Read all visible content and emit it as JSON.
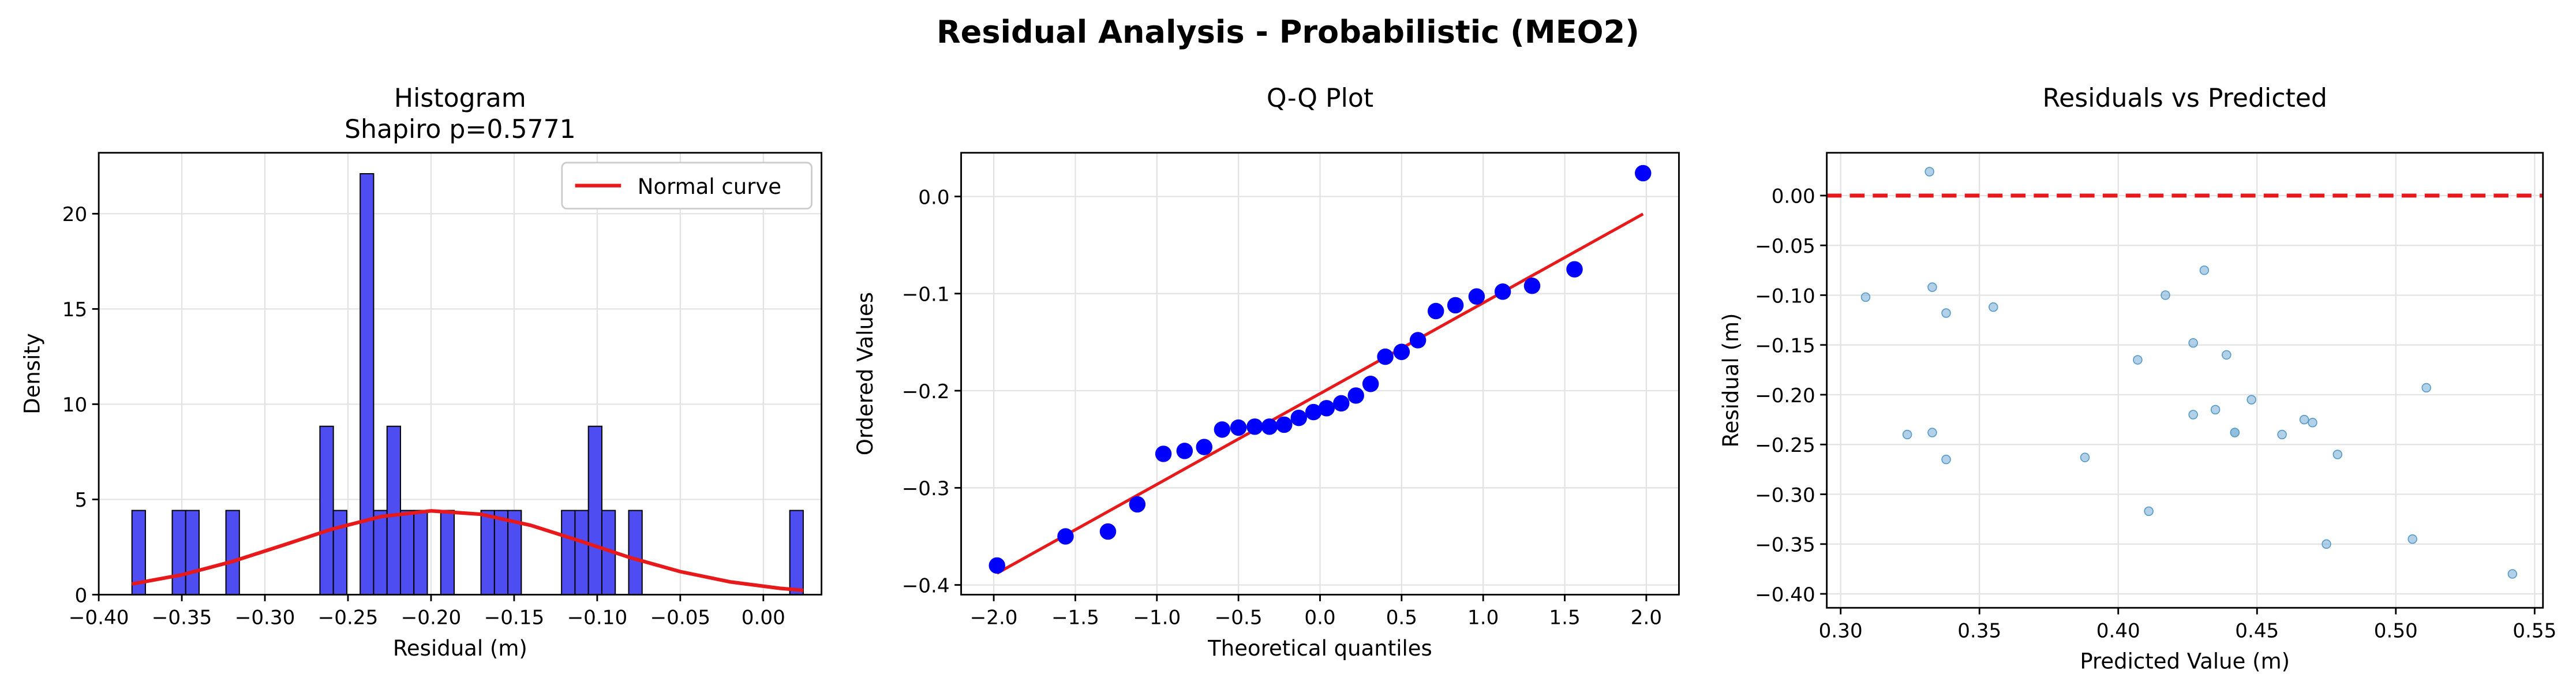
{
  "title": "Residual Analysis - Probabilistic (MEO2)",
  "chart_data": [
    {
      "type": "histogram",
      "title": "Histogram",
      "subtitle": "Shapiro p=0.5771",
      "xlabel": "Residual (m)",
      "ylabel": "Density",
      "bins": [
        -0.38,
        -0.37192,
        -0.36384,
        -0.35576,
        -0.34768,
        -0.3396,
        -0.33152,
        -0.32344,
        -0.31536,
        -0.30728,
        -0.2992,
        -0.29112,
        -0.28304,
        -0.27496,
        -0.26688,
        -0.2588,
        -0.25072,
        -0.24264,
        -0.23456,
        -0.22648,
        -0.2184,
        -0.21032,
        -0.20224,
        -0.19416,
        -0.18608,
        -0.178,
        -0.16992,
        -0.16184,
        -0.15376,
        -0.14568,
        -0.1376,
        -0.12952,
        -0.12144,
        -0.11336,
        -0.10528,
        -0.0972,
        -0.08912,
        -0.08104,
        -0.07296,
        -0.06488,
        -0.0568,
        -0.04872,
        -0.04064,
        -0.03256,
        -0.02448,
        -0.0164,
        -0.00832,
        -0.00024,
        0.00784,
        0.01592,
        0.024
      ],
      "values": [
        4.42,
        0,
        0,
        4.42,
        4.42,
        0,
        0,
        4.42,
        0,
        0,
        0,
        0,
        0,
        0,
        8.84,
        4.42,
        0,
        22.1,
        4.42,
        8.84,
        4.42,
        4.42,
        0,
        4.42,
        0,
        0,
        4.42,
        4.42,
        4.42,
        0,
        0,
        0,
        4.42,
        4.42,
        8.84,
        4.42,
        0,
        4.42,
        0,
        0,
        0,
        0,
        0,
        0,
        0,
        0,
        0,
        0,
        0,
        4.42
      ],
      "color": "#4d4df2",
      "curve": {
        "name": "Normal curve",
        "color": "#e8191b",
        "x": [
          -0.38,
          -0.35,
          -0.32,
          -0.29,
          -0.26,
          -0.23,
          -0.2,
          -0.17,
          -0.14,
          -0.11,
          -0.08,
          -0.05,
          -0.02,
          0.01,
          0.024
        ],
        "values": [
          0.56,
          1.04,
          1.73,
          2.57,
          3.43,
          4.1,
          4.4,
          4.22,
          3.64,
          2.81,
          1.94,
          1.21,
          0.67,
          0.33,
          0.23
        ]
      },
      "legend": "upper right",
      "grid": true,
      "xlim": [
        -0.4,
        0.035
      ],
      "ylim": [
        0,
        23.2
      ],
      "xticks": [
        {
          "value": -0.4,
          "label": "−0.40"
        },
        {
          "value": -0.35,
          "label": "−0.35"
        },
        {
          "value": -0.3,
          "label": "−0.30"
        },
        {
          "value": -0.25,
          "label": "−0.25"
        },
        {
          "value": -0.2,
          "label": "−0.20"
        },
        {
          "value": -0.15,
          "label": "−0.15"
        },
        {
          "value": -0.1,
          "label": "−0.10"
        },
        {
          "value": -0.05,
          "label": "−0.05"
        },
        {
          "value": 0,
          "label": "0.00"
        }
      ],
      "yticks": [
        0,
        5,
        10,
        15,
        20
      ]
    },
    {
      "type": "qq",
      "title": "Q-Q Plot",
      "xlabel": "Theoretical quantiles",
      "ylabel": "Ordered Values",
      "x": [
        -1.98,
        -1.56,
        -1.3,
        -1.12,
        -0.96,
        -0.83,
        -0.71,
        -0.6,
        -0.5,
        -0.4,
        -0.31,
        -0.22,
        -0.13,
        -0.04,
        0.04,
        0.13,
        0.22,
        0.31,
        0.4,
        0.5,
        0.6,
        0.71,
        0.83,
        0.96,
        1.12,
        1.3,
        1.56,
        1.98
      ],
      "values": [
        -0.38,
        -0.35,
        -0.345,
        -0.317,
        -0.265,
        -0.262,
        -0.258,
        -0.24,
        -0.238,
        -0.237,
        -0.237,
        -0.235,
        -0.228,
        -0.222,
        -0.218,
        -0.213,
        -0.205,
        -0.193,
        -0.165,
        -0.16,
        -0.148,
        -0.118,
        -0.112,
        -0.103,
        -0.098,
        -0.092,
        -0.075,
        0.024
      ],
      "color": "#0000ff",
      "fit": {
        "x": [
          -1.98,
          1.98
        ],
        "values": [
          -0.388,
          -0.018
        ],
        "color": "#e8191b"
      },
      "grid": true,
      "xlim": [
        -2.2,
        2.2
      ],
      "ylim": [
        -0.41,
        0.045
      ],
      "xticks": [
        {
          "value": -2,
          "label": "−2.0"
        },
        {
          "value": -1.5,
          "label": "−1.5"
        },
        {
          "value": -1,
          "label": "−1.0"
        },
        {
          "value": -0.5,
          "label": "−0.5"
        },
        {
          "value": 0,
          "label": "0.0"
        },
        {
          "value": 0.5,
          "label": "0.5"
        },
        {
          "value": 1,
          "label": "1.0"
        },
        {
          "value": 1.5,
          "label": "1.5"
        },
        {
          "value": 2,
          "label": "2.0"
        }
      ],
      "yticks": [
        {
          "value": -0.4,
          "label": "−0.4"
        },
        {
          "value": -0.3,
          "label": "−0.3"
        },
        {
          "value": -0.2,
          "label": "−0.2"
        },
        {
          "value": -0.1,
          "label": "−0.1"
        },
        {
          "value": 0,
          "label": "0.0"
        }
      ]
    },
    {
      "type": "scatter",
      "title": "Residuals vs Predicted",
      "xlabel": "Predicted Value (m)",
      "ylabel": "Residual (m)",
      "x": [
        0.309,
        0.332,
        0.333,
        0.338,
        0.355,
        0.324,
        0.333,
        0.338,
        0.388,
        0.407,
        0.411,
        0.417,
        0.427,
        0.431,
        0.427,
        0.435,
        0.439,
        0.442,
        0.442,
        0.448,
        0.459,
        0.467,
        0.47,
        0.475,
        0.479,
        0.506,
        0.511,
        0.542
      ],
      "values": [
        -0.102,
        0.024,
        -0.092,
        -0.118,
        -0.112,
        -0.24,
        -0.238,
        -0.265,
        -0.263,
        -0.165,
        -0.317,
        -0.1,
        -0.148,
        -0.075,
        -0.22,
        -0.215,
        -0.16,
        -0.238,
        -0.238,
        -0.205,
        -0.24,
        -0.225,
        -0.228,
        -0.35,
        -0.26,
        -0.345,
        -0.193,
        -0.38
      ],
      "color": "#7fb2d8",
      "axhline": 0,
      "axhline_color": "#e8191b",
      "grid": true,
      "xlim": [
        0.295,
        0.553
      ],
      "ylim": [
        -0.414,
        0.043
      ],
      "xticks": [
        {
          "value": 0.3,
          "label": "0.30"
        },
        {
          "value": 0.35,
          "label": "0.35"
        },
        {
          "value": 0.4,
          "label": "0.40"
        },
        {
          "value": 0.45,
          "label": "0.45"
        },
        {
          "value": 0.5,
          "label": "0.50"
        },
        {
          "value": 0.55,
          "label": "0.55"
        }
      ],
      "yticks": [
        {
          "value": -0.4,
          "label": "−0.40"
        },
        {
          "value": -0.35,
          "label": "−0.35"
        },
        {
          "value": -0.3,
          "label": "−0.30"
        },
        {
          "value": -0.25,
          "label": "−0.25"
        },
        {
          "value": -0.2,
          "label": "−0.20"
        },
        {
          "value": -0.15,
          "label": "−0.15"
        },
        {
          "value": -0.1,
          "label": "−0.10"
        },
        {
          "value": -0.05,
          "label": "−0.05"
        },
        {
          "value": 0,
          "label": "0.00"
        }
      ]
    }
  ]
}
